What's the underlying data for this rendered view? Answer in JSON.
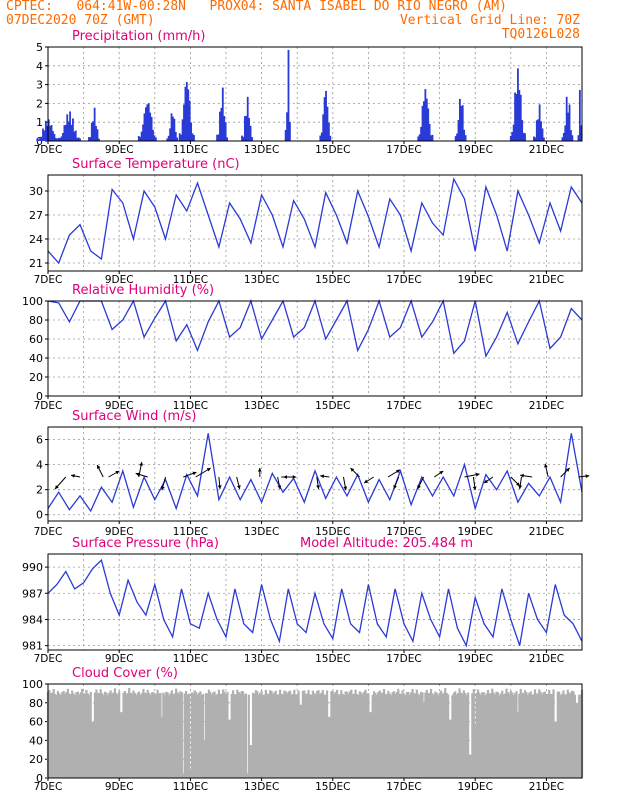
{
  "header": {
    "line1_left": "CPTEC:   064:41W-00:28N   PROX04: SANTA ISABEL DO RIO NEGRO (AM)",
    "line2_left": "07DEC2020 70Z (GMT)",
    "line2_right": "Vertical Grid Line: 70Z",
    "line3_right": "TQ0126L028"
  },
  "colors": {
    "header": "#ff6a00",
    "title": "#e0007a",
    "line": "#2a3ad6",
    "bar": "#2a3ad6",
    "cloud": "#b0b0b0",
    "arrow": "#000000",
    "grid": "#9a9a9a"
  },
  "chart_data": [
    {
      "type": "bar",
      "title": "Precipitation (mm/h)",
      "ylim": [
        0,
        5
      ],
      "yticks": [
        0,
        1,
        2,
        3,
        4,
        5
      ],
      "xlabels": [
        "7DEC",
        "9DEC",
        "11DEC",
        "13DEC",
        "15DEC",
        "17DEC",
        "19DEC",
        "21DEC"
      ],
      "x_days": [
        7,
        22
      ],
      "events": [
        {
          "day": 7.0,
          "width": 0.6,
          "peak": 1.2
        },
        {
          "day": 7.6,
          "width": 0.6,
          "peak": 1.6
        },
        {
          "day": 8.3,
          "width": 0.3,
          "peak": 1.8
        },
        {
          "day": 9.8,
          "width": 0.5,
          "peak": 2.3
        },
        {
          "day": 10.5,
          "width": 0.3,
          "peak": 1.7
        },
        {
          "day": 10.9,
          "width": 0.4,
          "peak": 3.6
        },
        {
          "day": 11.9,
          "width": 0.3,
          "peak": 2.9
        },
        {
          "day": 12.6,
          "width": 0.3,
          "peak": 2.4
        },
        {
          "day": 13.75,
          "width": 0.15,
          "peak": 4.9
        },
        {
          "day": 14.8,
          "width": 0.3,
          "peak": 3.0
        },
        {
          "day": 17.6,
          "width": 0.4,
          "peak": 3.0
        },
        {
          "day": 18.6,
          "width": 0.3,
          "peak": 2.6
        },
        {
          "day": 20.2,
          "width": 0.4,
          "peak": 4.0
        },
        {
          "day": 20.8,
          "width": 0.3,
          "peak": 2.0
        },
        {
          "day": 21.6,
          "width": 0.3,
          "peak": 2.6
        },
        {
          "day": 21.95,
          "width": 0.1,
          "peak": 3.2
        }
      ]
    },
    {
      "type": "line",
      "title": "Surface Temperature (nC)",
      "ylim": [
        20,
        32
      ],
      "yticks": [
        21,
        24,
        27,
        30
      ],
      "xlabels": [
        "7DEC",
        "9DEC",
        "11DEC",
        "13DEC",
        "15DEC",
        "17DEC",
        "19DEC",
        "21DEC"
      ],
      "x": [
        7.0,
        7.3,
        7.6,
        7.9,
        8.2,
        8.5,
        8.8,
        9.1,
        9.4,
        9.7,
        10.0,
        10.3,
        10.6,
        10.9,
        11.2,
        11.5,
        11.8,
        12.1,
        12.4,
        12.7,
        13.0,
        13.3,
        13.6,
        13.9,
        14.2,
        14.5,
        14.8,
        15.1,
        15.4,
        15.7,
        16.0,
        16.3,
        16.6,
        16.9,
        17.2,
        17.5,
        17.8,
        18.1,
        18.4,
        18.7,
        19.0,
        19.3,
        19.6,
        19.9,
        20.2,
        20.5,
        20.8,
        21.1,
        21.4,
        21.7,
        22.0
      ],
      "y": [
        22.5,
        21.0,
        24.5,
        25.8,
        22.5,
        21.5,
        30.2,
        28.5,
        24.0,
        30.0,
        28.0,
        24.0,
        29.5,
        27.5,
        31.0,
        27.0,
        23.0,
        28.5,
        26.5,
        23.5,
        29.5,
        27.0,
        23.0,
        28.8,
        26.5,
        23.0,
        29.8,
        27.0,
        23.5,
        30.0,
        26.8,
        23.0,
        29.0,
        27.0,
        22.5,
        28.5,
        26.0,
        24.5,
        31.5,
        29.0,
        22.5,
        30.5,
        27.0,
        22.5,
        30.0,
        27.0,
        23.5,
        28.5,
        25.0,
        30.5,
        28.5
      ]
    },
    {
      "type": "line",
      "title": "Relative Humidity (%)",
      "ylim": [
        0,
        100
      ],
      "yticks": [
        0,
        20,
        40,
        60,
        80,
        100
      ],
      "xlabels": [
        "7DEC",
        "9DEC",
        "11DEC",
        "13DEC",
        "15DEC",
        "17DEC",
        "19DEC",
        "21DEC"
      ],
      "x": [
        7.0,
        7.3,
        7.6,
        7.9,
        8.2,
        8.5,
        8.8,
        9.1,
        9.4,
        9.7,
        10.0,
        10.3,
        10.6,
        10.9,
        11.2,
        11.5,
        11.8,
        12.1,
        12.4,
        12.7,
        13.0,
        13.3,
        13.6,
        13.9,
        14.2,
        14.5,
        14.8,
        15.1,
        15.4,
        15.7,
        16.0,
        16.3,
        16.6,
        16.9,
        17.2,
        17.5,
        17.8,
        18.1,
        18.4,
        18.7,
        19.0,
        19.3,
        19.6,
        19.9,
        20.2,
        20.5,
        20.8,
        21.1,
        21.4,
        21.7,
        22.0
      ],
      "y": [
        100,
        98,
        78,
        100,
        100,
        100,
        70,
        80,
        100,
        62,
        82,
        100,
        58,
        75,
        48,
        78,
        100,
        62,
        72,
        100,
        60,
        80,
        100,
        62,
        72,
        100,
        60,
        80,
        100,
        48,
        70,
        100,
        62,
        72,
        100,
        62,
        78,
        100,
        45,
        58,
        100,
        42,
        62,
        88,
        55,
        78,
        100,
        50,
        62,
        92,
        80
      ]
    },
    {
      "type": "line",
      "title": "Surface Wind (m/s)",
      "ylim": [
        -0.5,
        7.0
      ],
      "yticks": [
        0,
        2,
        4,
        6
      ],
      "xlabels": [
        "7DEC",
        "9DEC",
        "11DEC",
        "13DEC",
        "15DEC",
        "17DEC",
        "19DEC",
        "21DEC"
      ],
      "x": [
        7.0,
        7.3,
        7.6,
        7.9,
        8.2,
        8.5,
        8.8,
        9.1,
        9.4,
        9.7,
        10.0,
        10.3,
        10.6,
        10.9,
        11.2,
        11.5,
        11.8,
        12.1,
        12.4,
        12.7,
        13.0,
        13.3,
        13.6,
        13.9,
        14.2,
        14.5,
        14.8,
        15.1,
        15.4,
        15.7,
        16.0,
        16.3,
        16.6,
        16.9,
        17.2,
        17.5,
        17.8,
        18.1,
        18.4,
        18.7,
        19.0,
        19.3,
        19.6,
        19.9,
        20.2,
        20.5,
        20.8,
        21.1,
        21.4,
        21.7,
        22.0
      ],
      "y": [
        0.5,
        1.8,
        0.4,
        1.5,
        0.3,
        2.2,
        1.0,
        3.5,
        0.6,
        3.0,
        1.2,
        2.8,
        0.5,
        3.2,
        1.5,
        6.5,
        1.2,
        3.0,
        1.2,
        2.8,
        1.0,
        3.3,
        1.8,
        2.9,
        1.0,
        3.5,
        1.3,
        3.0,
        1.5,
        3.2,
        1.0,
        2.8,
        1.2,
        3.5,
        0.8,
        3.0,
        1.5,
        3.0,
        1.5,
        4.0,
        0.5,
        3.2,
        2.0,
        3.5,
        1.0,
        2.5,
        1.5,
        3.0,
        1.0,
        6.5,
        1.8
      ],
      "vectors": [
        {
          "day": 7.5,
          "u": -1.8,
          "v": -2.0
        },
        {
          "day": 7.9,
          "u": -1.5,
          "v": 0.3
        },
        {
          "day": 8.55,
          "u": -1.0,
          "v": 2.0
        },
        {
          "day": 8.7,
          "u": 1.8,
          "v": 1.0
        },
        {
          "day": 9.55,
          "u": 0.5,
          "v": 2.5
        },
        {
          "day": 9.8,
          "u": -2.0,
          "v": 0.6
        },
        {
          "day": 10.3,
          "u": -0.6,
          "v": -2.2
        },
        {
          "day": 10.8,
          "u": 2.2,
          "v": 0.8
        },
        {
          "day": 11.15,
          "u": 2.5,
          "v": 1.5
        },
        {
          "day": 11.8,
          "u": 0.2,
          "v": -2.0
        },
        {
          "day": 12.3,
          "u": 0.5,
          "v": -2.0
        },
        {
          "day": 12.95,
          "u": 0.0,
          "v": 1.5
        },
        {
          "day": 13.45,
          "u": 0.4,
          "v": -2.0
        },
        {
          "day": 13.55,
          "u": 2.5,
          "v": 0.0
        },
        {
          "day": 13.95,
          "u": -2.0,
          "v": 0.0
        },
        {
          "day": 14.55,
          "u": 0.3,
          "v": -2.0
        },
        {
          "day": 14.9,
          "u": -1.5,
          "v": 0.2
        },
        {
          "day": 15.3,
          "u": 0.4,
          "v": -2.2
        },
        {
          "day": 15.75,
          "u": -1.5,
          "v": 1.5
        },
        {
          "day": 16.15,
          "u": -1.6,
          "v": -1.0
        },
        {
          "day": 16.55,
          "u": 2.0,
          "v": 1.2
        },
        {
          "day": 16.85,
          "u": -0.8,
          "v": -2.0
        },
        {
          "day": 17.55,
          "u": -1.0,
          "v": -2.0
        },
        {
          "day": 17.85,
          "u": 1.5,
          "v": 1.0
        },
        {
          "day": 18.7,
          "u": 2.5,
          "v": 0.5
        },
        {
          "day": 18.95,
          "u": 0.3,
          "v": -2.2
        },
        {
          "day": 19.5,
          "u": -1.5,
          "v": -1.0
        },
        {
          "day": 20.0,
          "u": 1.5,
          "v": -1.5
        },
        {
          "day": 20.3,
          "u": -0.3,
          "v": -2.0
        },
        {
          "day": 20.6,
          "u": -2.0,
          "v": 0.3
        },
        {
          "day": 21.05,
          "u": -0.5,
          "v": 2.2
        },
        {
          "day": 21.4,
          "u": 1.5,
          "v": 1.5
        },
        {
          "day": 21.9,
          "u": 1.8,
          "v": 0.2
        }
      ]
    },
    {
      "type": "line",
      "title": "Surface Pressure (hPa)",
      "subtitle": "Model Altitude: 205.484 m",
      "ylim": [
        980.5,
        991.5
      ],
      "yticks": [
        981,
        984,
        987,
        990
      ],
      "xlabels": [
        "7DEC",
        "9DEC",
        "11DEC",
        "13DEC",
        "15DEC",
        "17DEC",
        "19DEC",
        "21DEC"
      ],
      "x": [
        7.0,
        7.25,
        7.5,
        7.75,
        8.0,
        8.25,
        8.5,
        8.75,
        9.0,
        9.25,
        9.5,
        9.75,
        10.0,
        10.25,
        10.5,
        10.75,
        11.0,
        11.25,
        11.5,
        11.75,
        12.0,
        12.25,
        12.5,
        12.75,
        13.0,
        13.25,
        13.5,
        13.75,
        14.0,
        14.25,
        14.5,
        14.75,
        15.0,
        15.25,
        15.5,
        15.75,
        16.0,
        16.25,
        16.5,
        16.75,
        17.0,
        17.25,
        17.5,
        17.75,
        18.0,
        18.25,
        18.5,
        18.75,
        19.0,
        19.25,
        19.5,
        19.75,
        20.0,
        20.25,
        20.5,
        20.75,
        21.0,
        21.25,
        21.5,
        21.75,
        22.0
      ],
      "y": [
        987.0,
        988.0,
        989.5,
        987.5,
        988.2,
        989.8,
        990.8,
        987.0,
        984.5,
        988.5,
        986.0,
        984.5,
        988.0,
        984.0,
        982.0,
        987.5,
        983.5,
        983.0,
        987.0,
        984.0,
        982.0,
        987.5,
        983.5,
        982.5,
        988.0,
        984.0,
        981.5,
        987.5,
        983.5,
        982.5,
        987.0,
        983.5,
        981.8,
        987.5,
        983.5,
        982.5,
        988.0,
        983.5,
        982.0,
        987.5,
        983.5,
        981.5,
        987.0,
        984.0,
        982.0,
        987.5,
        983.0,
        981.0,
        986.5,
        983.5,
        982.0,
        987.5,
        984.0,
        981.0,
        987.0,
        984.0,
        982.5,
        988.0,
        984.5,
        983.5,
        981.5
      ]
    },
    {
      "type": "area",
      "title": "Cloud Cover (%)",
      "ylim": [
        0,
        100
      ],
      "yticks": [
        0,
        20,
        40,
        60,
        80,
        100
      ],
      "xlabels": [
        "7DEC",
        "9DEC",
        "11DEC",
        "13DEC",
        "15DEC",
        "17DEC",
        "19DEC",
        "21DEC"
      ],
      "base_level": 96,
      "dips": [
        {
          "day": 8.25,
          "value": 60
        },
        {
          "day": 9.05,
          "value": 70
        },
        {
          "day": 10.2,
          "value": 65
        },
        {
          "day": 10.8,
          "value": 5
        },
        {
          "day": 11.0,
          "value": 10
        },
        {
          "day": 11.4,
          "value": 40
        },
        {
          "day": 12.1,
          "value": 62
        },
        {
          "day": 12.6,
          "value": 5
        },
        {
          "day": 12.7,
          "value": 35
        },
        {
          "day": 14.1,
          "value": 78
        },
        {
          "day": 14.9,
          "value": 65
        },
        {
          "day": 16.05,
          "value": 70
        },
        {
          "day": 17.55,
          "value": 80
        },
        {
          "day": 18.3,
          "value": 62
        },
        {
          "day": 18.85,
          "value": 25
        },
        {
          "day": 19.0,
          "value": 55
        },
        {
          "day": 20.2,
          "value": 70
        },
        {
          "day": 21.25,
          "value": 60
        },
        {
          "day": 21.85,
          "value": 80
        }
      ]
    }
  ]
}
